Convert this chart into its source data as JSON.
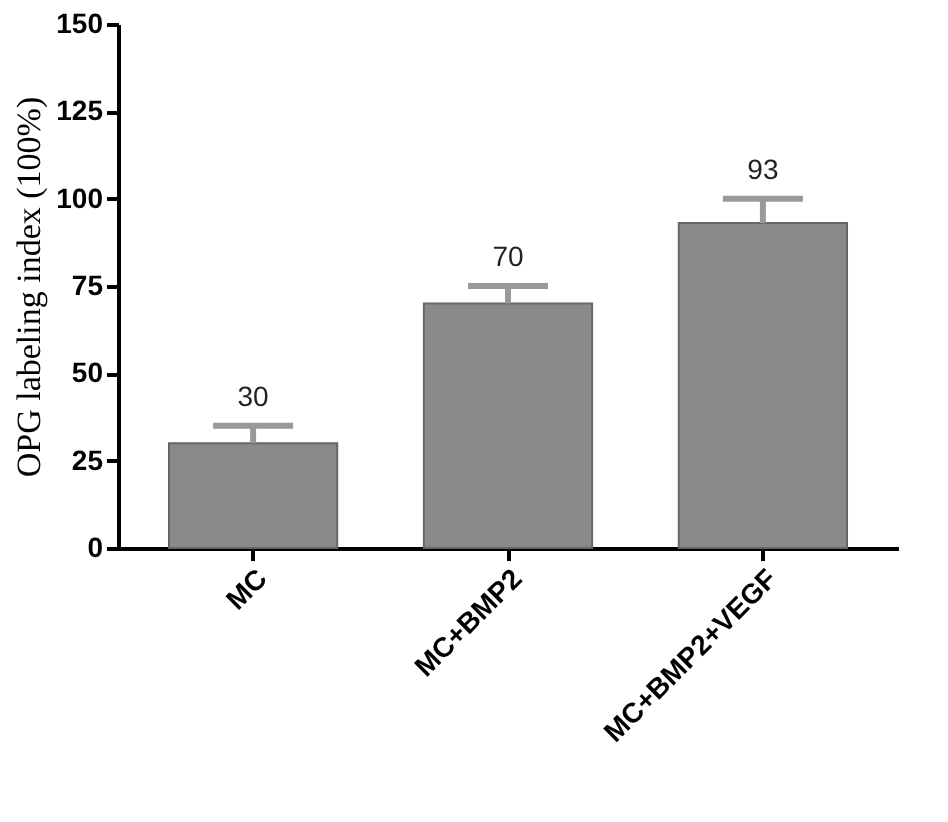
{
  "chart_data": {
    "type": "bar",
    "ylabel": "OPG labeling index (100%)",
    "categories": [
      "MC",
      "MC+BMP2",
      "MC+BMP2+VEGF"
    ],
    "values": [
      30,
      70,
      93
    ],
    "errors": [
      [
        30,
        35
      ],
      [
        70,
        75
      ],
      [
        93,
        100
      ]
    ],
    "color": "#8a8a8a",
    "ylim": [
      0,
      150
    ],
    "yticks": [
      0,
      25,
      50,
      75,
      100,
      125,
      150
    ],
    "data_labels": true,
    "grid": false
  }
}
